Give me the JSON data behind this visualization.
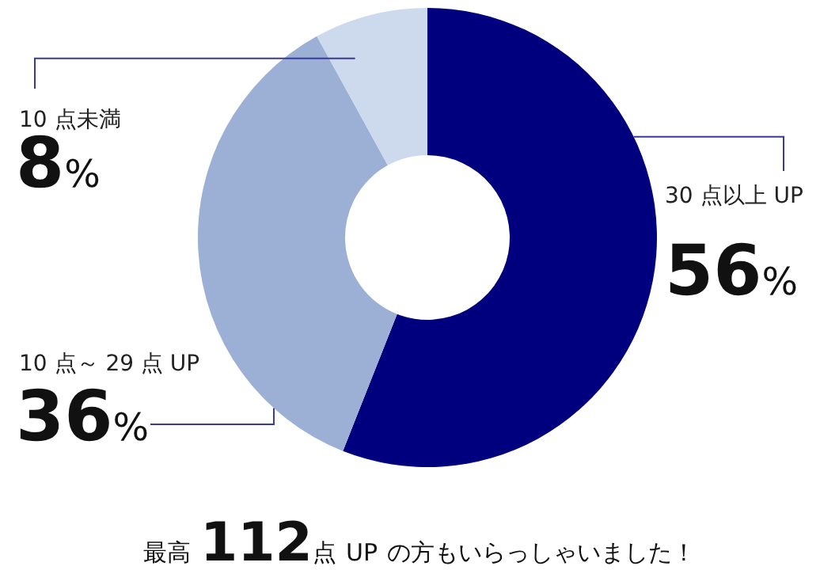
{
  "chart_data": {
    "type": "donut",
    "categories": [
      "30 点以上 UP",
      "10 点～ 29 点 UP",
      "10 点未満"
    ],
    "values": [
      56,
      36,
      8
    ],
    "value_labels": [
      "56%",
      "36%",
      "8%"
    ],
    "colors": [
      "#00007f",
      "#9bb0d4",
      "#cddaed"
    ],
    "annotations": [
      "最高 112点 UP の方もいらっしゃいました！"
    ]
  }
}
